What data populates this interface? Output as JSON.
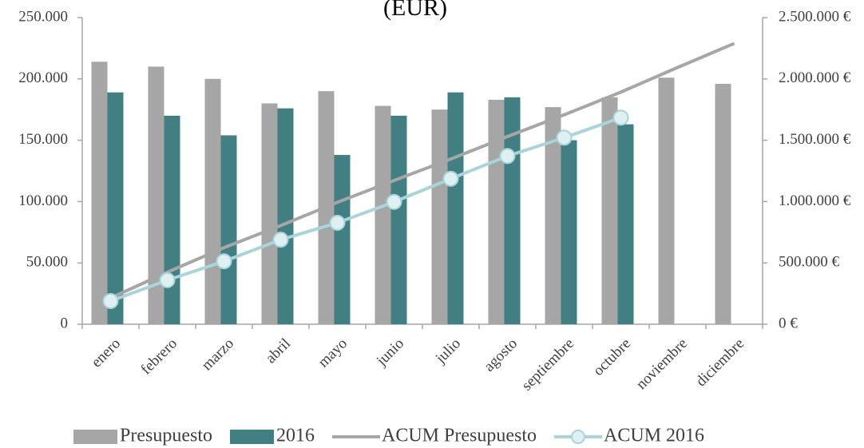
{
  "chart_data": {
    "type": "bar",
    "title": "(EUR)",
    "categories": [
      "enero",
      "febrero",
      "marzo",
      "abril",
      "mayo",
      "junio",
      "julio",
      "agosto",
      "septiembre",
      "octubre",
      "noviembre",
      "diciembre"
    ],
    "series": [
      {
        "name": "Presupuesto",
        "type": "bar",
        "color": "#a6a6a6",
        "values": [
          214000,
          210000,
          200000,
          180000,
          190000,
          178000,
          175000,
          183000,
          177000,
          185000,
          201000,
          196000
        ]
      },
      {
        "name": "2016",
        "type": "bar",
        "color": "#417f83",
        "values": [
          189000,
          170000,
          154000,
          176000,
          138000,
          170000,
          189000,
          185000,
          150000,
          163000,
          null,
          null
        ]
      },
      {
        "name": "ACUM Presupuesto",
        "type": "line",
        "axis": "y2",
        "color": "#a6a6a6",
        "values": [
          214000,
          424000,
          624000,
          804000,
          994000,
          1172000,
          1347000,
          1530000,
          1707000,
          1892000,
          2093000,
          2289000
        ]
      },
      {
        "name": "ACUM 2016",
        "type": "line",
        "axis": "y2",
        "markers": true,
        "color": "#a9d4d9",
        "values": [
          189000,
          359000,
          513000,
          689000,
          827000,
          997000,
          1186000,
          1371000,
          1521000,
          1684000,
          null,
          null
        ]
      }
    ],
    "ylim": [
      0,
      250000
    ],
    "yticks": [
      0,
      {
        "value": 50000,
        "label": "50.000"
      },
      {
        "value": 100000,
        "label": "100.000"
      },
      {
        "value": 150000,
        "label": "150.000"
      },
      {
        "value": 200000,
        "label": "200.000"
      },
      {
        "value": 250000,
        "label": "250.000"
      }
    ],
    "y2lim": [
      0,
      2500000
    ],
    "y2ticks": [
      {
        "value": 0,
        "label": "0 €"
      },
      {
        "value": 500000,
        "label": "500.000 €"
      },
      {
        "value": 1000000,
        "label": "1.000.000 €"
      },
      {
        "value": 1500000,
        "label": "1.500.000 €"
      },
      {
        "value": 2000000,
        "label": "2.000.000 €"
      },
      {
        "value": 2500000,
        "label": "2.500.000 €"
      }
    ],
    "legend": "bottom"
  }
}
